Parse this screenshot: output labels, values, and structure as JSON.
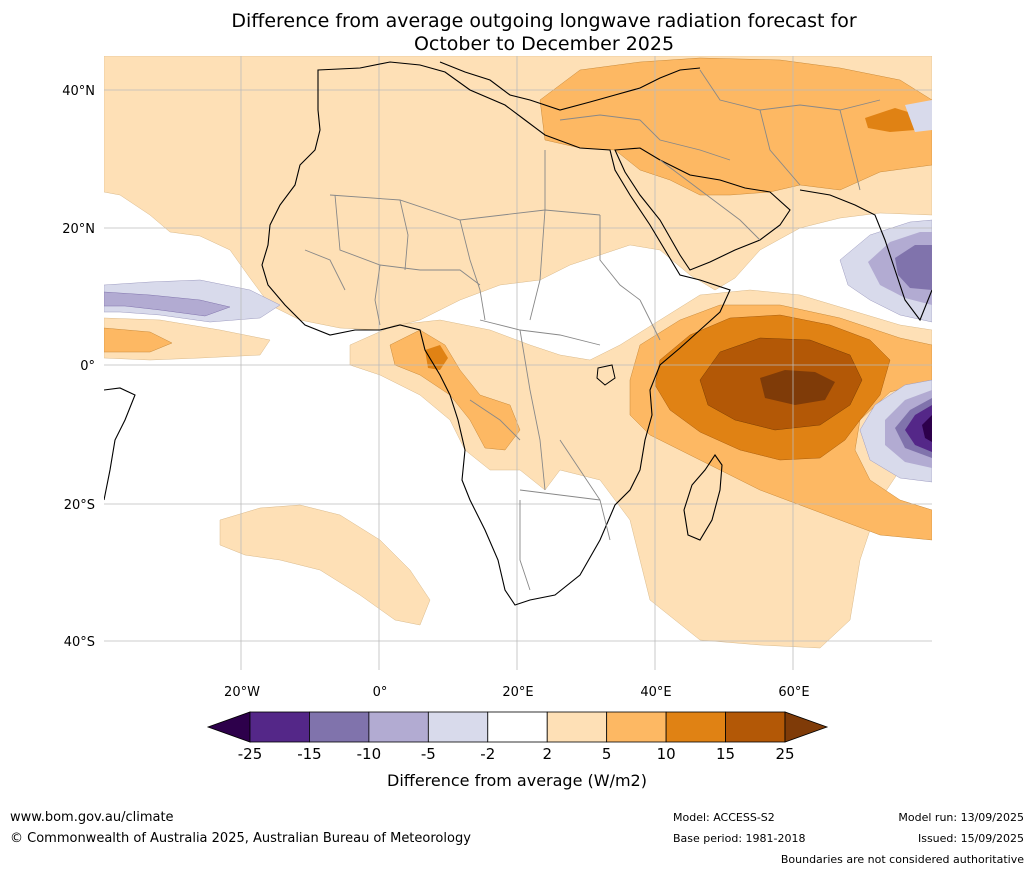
{
  "title": {
    "line1": "Difference from average outgoing longwave radiation forecast for",
    "line2": "October to December 2025"
  },
  "axes": {
    "lat_labels": [
      "40°N",
      "20°N",
      "0°",
      "20°S",
      "40°S"
    ],
    "lon_labels": [
      "20°W",
      "0°",
      "20°E",
      "40°E",
      "60°E"
    ]
  },
  "colorbar": {
    "title": "Difference from average (W/m2)",
    "tick_labels": [
      "-25",
      "-15",
      "-10",
      "-5",
      "-2",
      "2",
      "5",
      "10",
      "15",
      "25"
    ],
    "colors": [
      "#2d004b",
      "#542788",
      "#8073ac",
      "#b2abd2",
      "#d8daeb",
      "#ffffff",
      "#fee0b6",
      "#fdb863",
      "#e08214",
      "#b35806",
      "#7f3b08"
    ]
  },
  "footer": {
    "url": "www.bom.gov.au/climate",
    "copyright": "© Commonwealth of Australia 2025, Australian Bureau of Meteorology",
    "model": "Model: ACCESS-S2",
    "base_period": "Base period: 1981-2018",
    "model_run": "Model run: 13/09/2025",
    "issued": "Issued: 15/09/2025",
    "disclaimer": "Boundaries are not considered authoritative"
  }
}
